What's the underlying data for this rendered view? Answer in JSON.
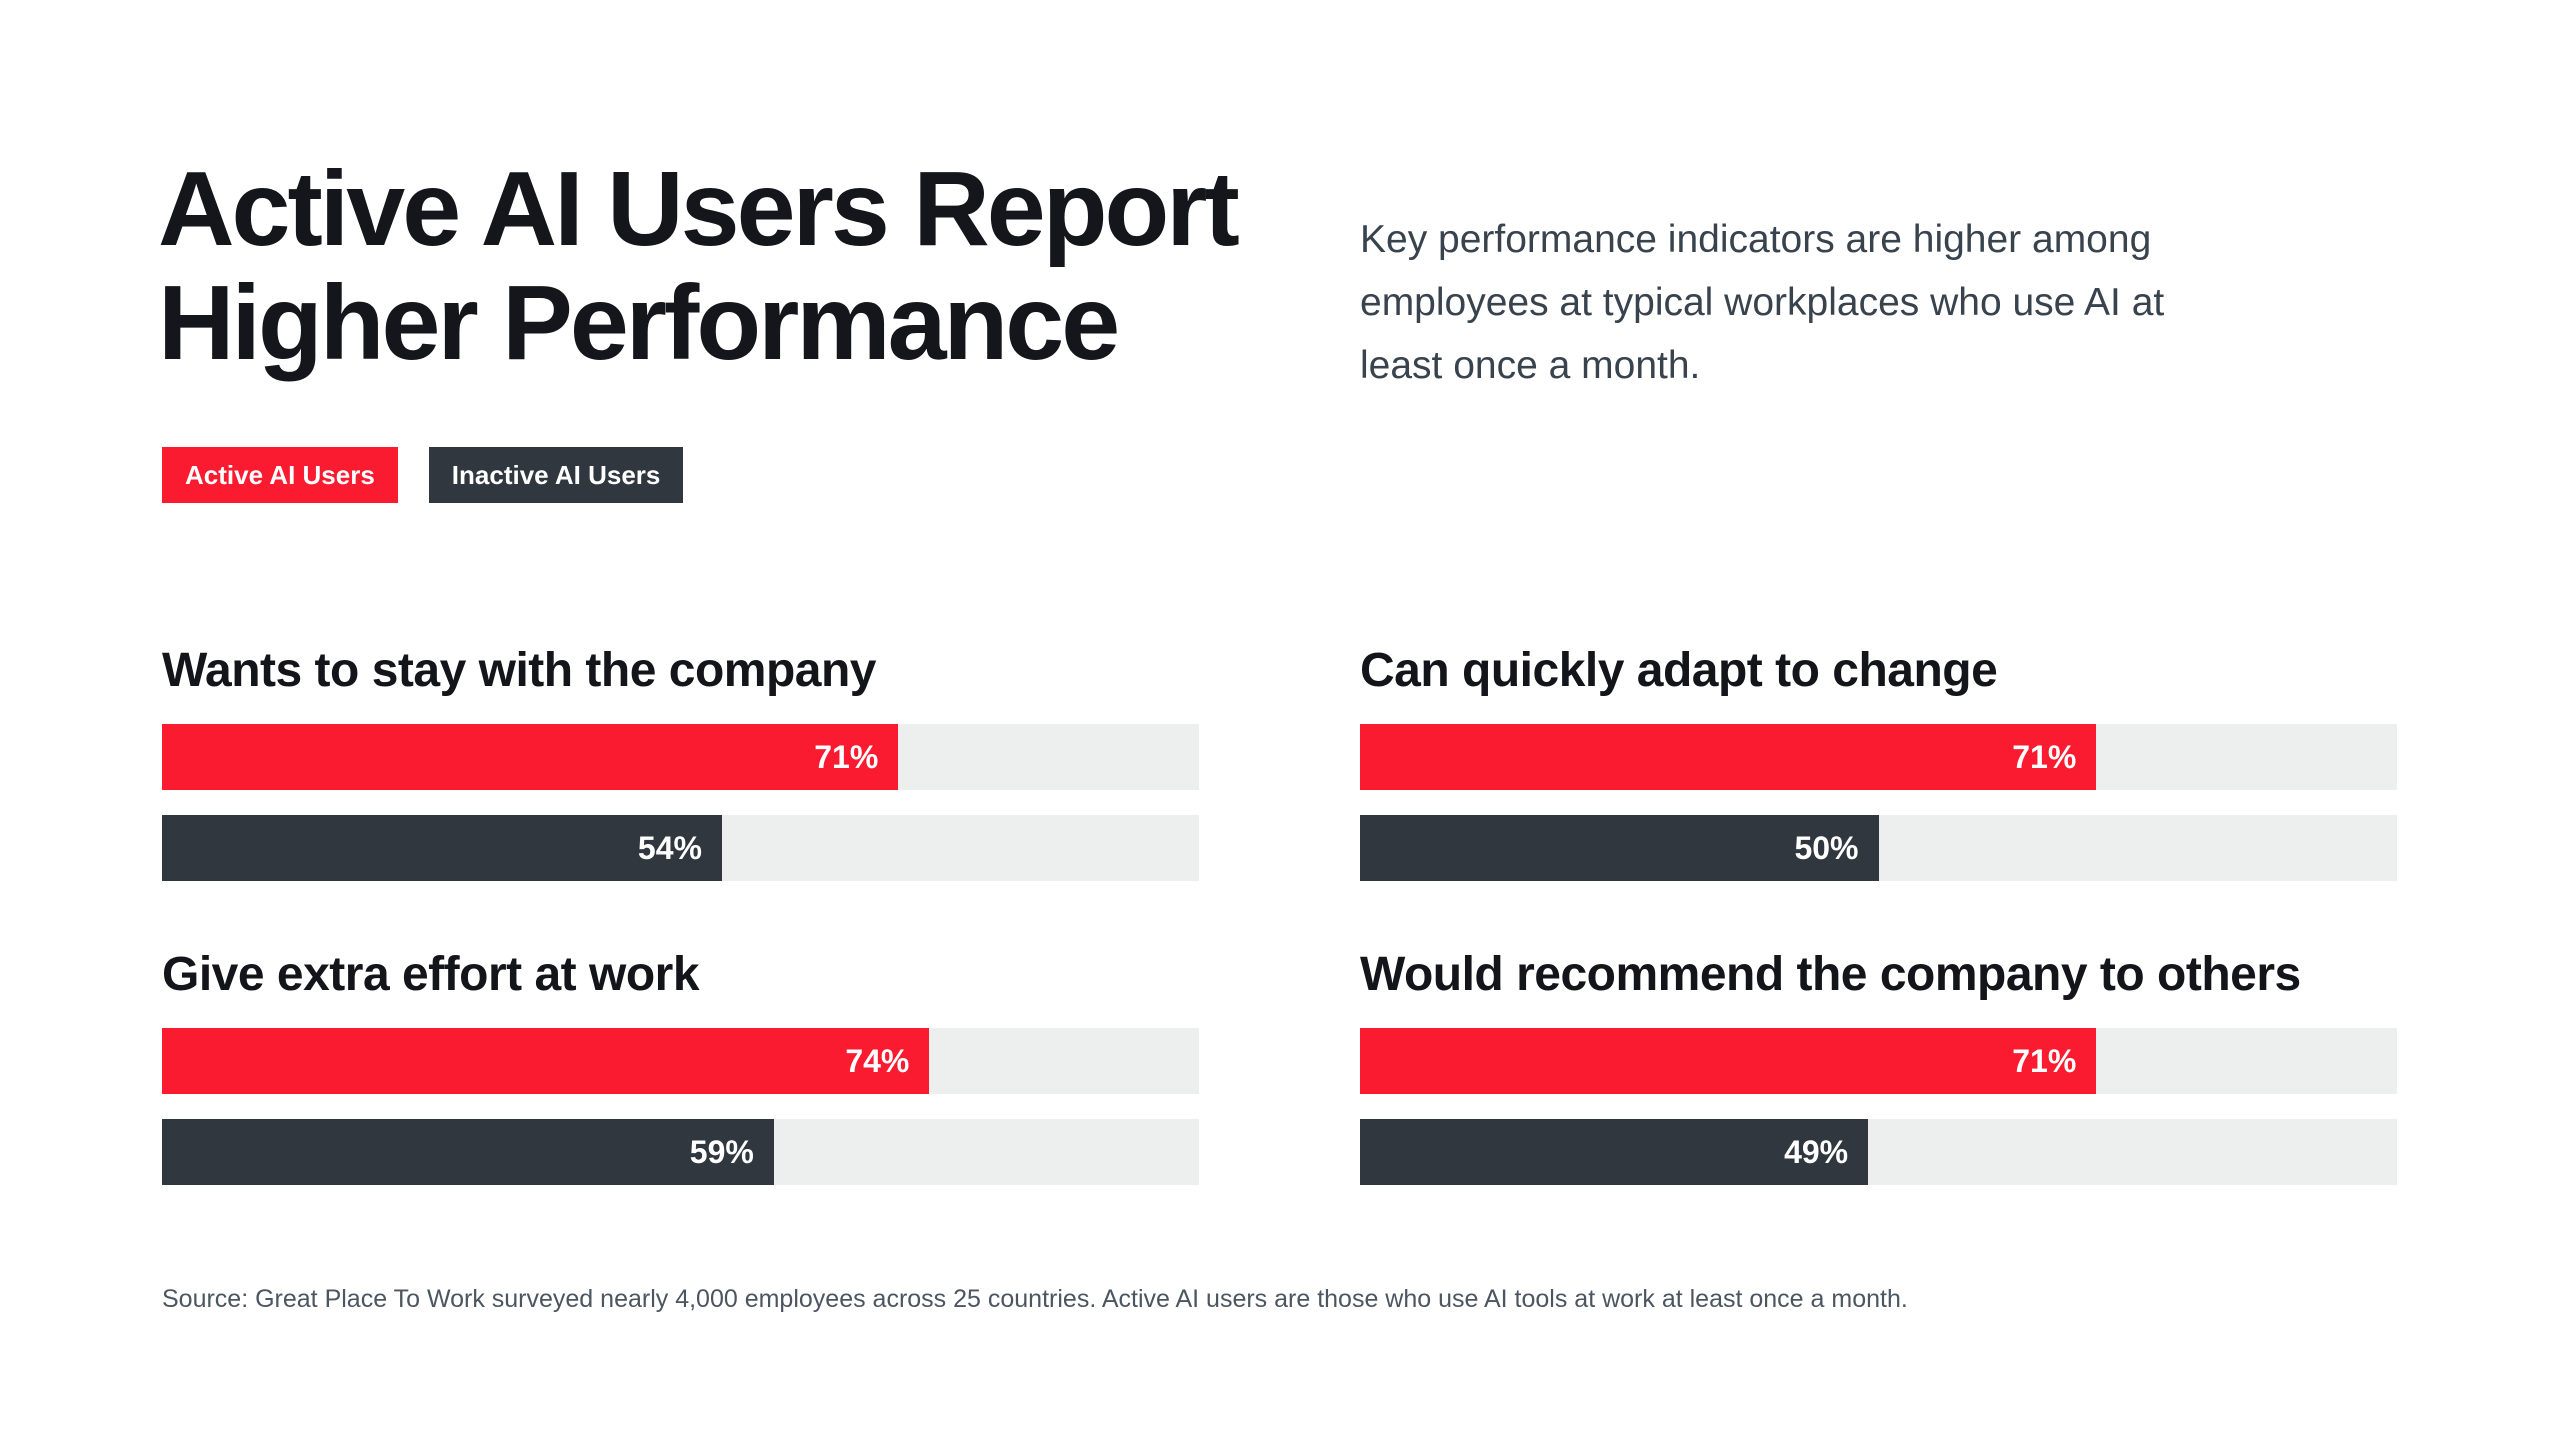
{
  "page": {
    "title_lines": [
      "Active AI Users Report",
      "Higher Performance"
    ],
    "subtitle_lines": [
      "Key performance indicators are higher among",
      "employees at typical workplaces who use AI at",
      "least once a month."
    ],
    "source": "Source: Great Place To Work surveyed nearly 4,000 employees across 25 countries. Active AI users are those who use AI tools at work at least once a month."
  },
  "legend": {
    "items": [
      {
        "label": "Active AI Users",
        "color": "#fa1b30"
      },
      {
        "label": "Inactive AI Users",
        "color": "#30373e"
      }
    ]
  },
  "colors": {
    "active_red": "#fa1b30",
    "inactive_charcoal": "#30373e",
    "bar_track": "#ecefee",
    "title_text": "#15161b",
    "subtitle_text": "#39434e",
    "source_text": "#4c5661",
    "background": "#ffffff"
  },
  "chart_data": {
    "type": "bar",
    "orientation": "horizontal",
    "title": "Active AI Users Report Higher Performance",
    "subtitle": "Key performance indicators are higher among employees at typical workplaces who use AI at least once a month.",
    "categories": [
      "Wants to stay with the company",
      "Can quickly adapt to change",
      "Give extra effort at work",
      "Would recommend the company to others"
    ],
    "series": [
      {
        "name": "Active AI Users",
        "color": "#fa1b30",
        "values": [
          71,
          71,
          74,
          71
        ]
      },
      {
        "name": "Inactive AI Users",
        "color": "#30373e",
        "values": [
          54,
          50,
          59,
          49
        ]
      }
    ],
    "xlim": [
      0,
      100
    ],
    "value_format": "percent",
    "grid": false,
    "legend_position": "top-left",
    "source": "Source: Great Place To Work surveyed nearly 4,000 employees across 25 countries. Active AI users are those who use AI tools at work at least once a month.",
    "panels": [
      {
        "title": "Wants to stay with the company",
        "bars": [
          {
            "series": "Active AI Users",
            "value": 71,
            "label": "71%"
          },
          {
            "series": "Inactive AI Users",
            "value": 54,
            "label": "54%"
          }
        ]
      },
      {
        "title": "Can quickly adapt to change",
        "bars": [
          {
            "series": "Active AI Users",
            "value": 71,
            "label": "71%"
          },
          {
            "series": "Inactive AI Users",
            "value": 50,
            "label": "50%"
          }
        ]
      },
      {
        "title": "Give extra effort at work",
        "bars": [
          {
            "series": "Active AI Users",
            "value": 74,
            "label": "74%"
          },
          {
            "series": "Inactive AI Users",
            "value": 59,
            "label": "59%"
          }
        ]
      },
      {
        "title": "Would recommend the company to others",
        "bars": [
          {
            "series": "Active AI Users",
            "value": 71,
            "label": "71%"
          },
          {
            "series": "Inactive AI Users",
            "value": 49,
            "label": "49%"
          }
        ]
      }
    ]
  }
}
